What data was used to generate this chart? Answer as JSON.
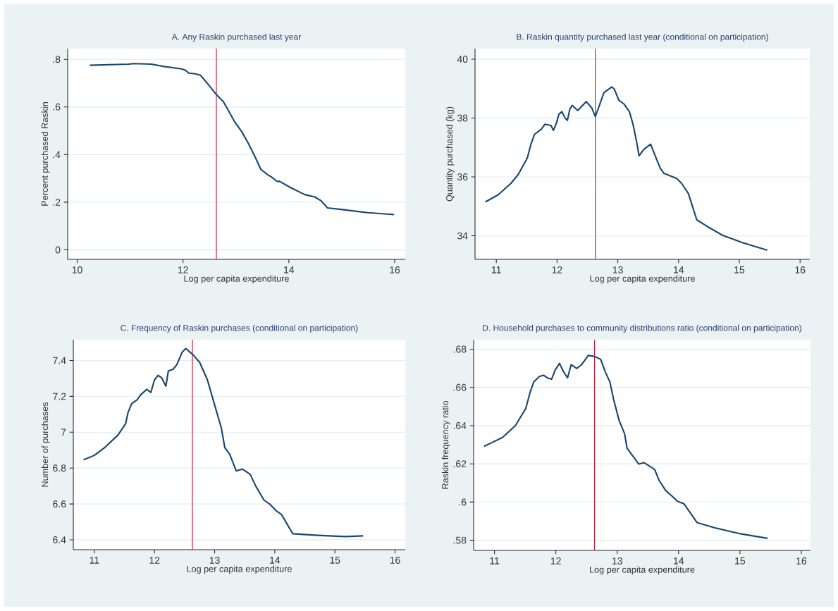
{
  "chart_data": [
    {
      "type": "line",
      "title": "A. Any Raskin purchased last year",
      "xlabel": "Log per capita expenditure",
      "ylabel": "Percent purchased Raskin",
      "color": "#1a476f",
      "grid": "y",
      "xlim": [
        9.82,
        16.2
      ],
      "ylim": [
        -0.04,
        0.845
      ],
      "xticks": [
        10,
        12,
        14,
        16
      ],
      "yticks": [
        {
          "value": 0,
          "label": "0"
        },
        {
          "value": 0.2,
          "label": ".2"
        },
        {
          "value": 0.4,
          "label": ".4"
        },
        {
          "value": 0.6,
          "label": ".6"
        },
        {
          "value": 0.8,
          "label": ".8"
        }
      ],
      "ref_lines": [
        {
          "axis": "x",
          "value": 12.63,
          "color": "#c4213b"
        }
      ],
      "x": [
        10.24,
        10.97,
        11.07,
        11.4,
        11.64,
        11.97,
        12.04,
        12.11,
        12.23,
        12.33,
        12.45,
        12.63,
        12.76,
        12.87,
        12.97,
        13.11,
        13.23,
        13.35,
        13.47,
        13.59,
        13.67,
        13.78,
        13.82,
        14.01,
        14.3,
        14.49,
        14.61,
        14.73,
        15.01,
        15.49,
        15.99
      ],
      "values": [
        0.775,
        0.78,
        0.782,
        0.78,
        0.77,
        0.76,
        0.755,
        0.742,
        0.739,
        0.733,
        0.702,
        0.652,
        0.623,
        0.58,
        0.54,
        0.496,
        0.449,
        0.396,
        0.338,
        0.317,
        0.306,
        0.287,
        0.288,
        0.264,
        0.232,
        0.222,
        0.206,
        0.176,
        0.169,
        0.156,
        0.148
      ]
    },
    {
      "type": "line",
      "title": "B. Raskin quantity purchased last year (conditional on participation)",
      "xlabel": "Log per capita expenditure",
      "ylabel": "Quantity purchased (kg)",
      "color": "#1a476f",
      "grid": "y",
      "xlim": [
        10.65,
        16.16
      ],
      "ylim": [
        33.2,
        40.36
      ],
      "xticks": [
        11,
        12,
        13,
        14,
        15,
        16
      ],
      "yticks": [
        34,
        36,
        38,
        40
      ],
      "ref_lines": [
        {
          "axis": "x",
          "value": 12.63,
          "color": "#c4213b"
        }
      ],
      "x": [
        10.82,
        11.03,
        11.24,
        11.36,
        11.51,
        11.57,
        11.63,
        11.74,
        11.8,
        11.9,
        11.94,
        11.99,
        12.03,
        12.08,
        12.13,
        12.17,
        12.21,
        12.25,
        12.34,
        12.48,
        12.57,
        12.63,
        12.69,
        12.77,
        12.9,
        12.94,
        13.02,
        13.1,
        13.19,
        13.25,
        13.31,
        13.35,
        13.43,
        13.54,
        13.64,
        13.7,
        13.76,
        13.87,
        13.97,
        14.05,
        14.16,
        14.3,
        14.47,
        14.72,
        15.05,
        15.46
      ],
      "values": [
        35.15,
        35.39,
        35.78,
        36.08,
        36.64,
        37.11,
        37.45,
        37.62,
        37.79,
        37.75,
        37.58,
        37.83,
        38.13,
        38.22,
        38.01,
        37.92,
        38.3,
        38.43,
        38.26,
        38.56,
        38.35,
        38.05,
        38.39,
        38.86,
        39.06,
        38.99,
        38.6,
        38.48,
        38.22,
        37.79,
        37.19,
        36.72,
        36.94,
        37.11,
        36.59,
        36.29,
        36.12,
        36.03,
        35.95,
        35.78,
        35.44,
        34.54,
        34.32,
        34.02,
        33.77,
        33.51
      ]
    },
    {
      "type": "line",
      "title": "C. Frequency of Raskin purchases (conditional on participation)",
      "xlabel": "Log per capita expenditure",
      "ylabel": "Number of purchases",
      "color": "#1a476f",
      "grid": "y",
      "xlim": [
        10.65,
        16.17
      ],
      "ylim": [
        6.345,
        7.516
      ],
      "xticks": [
        11,
        12,
        13,
        14,
        15,
        16
      ],
      "yticks": [
        6.4,
        6.6,
        6.8,
        7,
        7.2,
        7.4
      ],
      "ref_lines": [
        {
          "axis": "x",
          "value": 12.63,
          "color": "#c4213b"
        }
      ],
      "x": [
        10.82,
        11.0,
        11.16,
        11.39,
        11.52,
        11.56,
        11.62,
        11.71,
        11.77,
        11.87,
        11.94,
        12.0,
        12.06,
        12.12,
        12.19,
        12.23,
        12.31,
        12.37,
        12.46,
        12.52,
        12.64,
        12.75,
        12.88,
        13.0,
        13.11,
        13.17,
        13.25,
        13.36,
        13.46,
        13.59,
        13.69,
        13.82,
        13.92,
        14.02,
        14.11,
        14.3,
        14.71,
        15.17,
        15.47
      ],
      "values": [
        6.846,
        6.871,
        6.911,
        6.983,
        7.047,
        7.11,
        7.159,
        7.18,
        7.208,
        7.239,
        7.222,
        7.292,
        7.317,
        7.303,
        7.257,
        7.341,
        7.351,
        7.376,
        7.446,
        7.467,
        7.432,
        7.39,
        7.292,
        7.152,
        7.026,
        6.913,
        6.878,
        6.784,
        6.794,
        6.766,
        6.696,
        6.622,
        6.598,
        6.563,
        6.542,
        6.434,
        6.425,
        6.418,
        6.422
      ]
    },
    {
      "type": "line",
      "title": "D. Household purchases to community distributions ratio (conditional on participation)",
      "xlabel": "Log per capita expenditure",
      "ylabel": "Raskin frequency ratio",
      "color": "#1a476f",
      "grid": "y",
      "xlim": [
        10.66,
        16.15
      ],
      "ylim": [
        0.5747,
        0.685
      ],
      "xticks": [
        11,
        12,
        13,
        14,
        15,
        16
      ],
      "yticks": [
        {
          "value": 0.58,
          "label": ".58"
        },
        {
          "value": 0.6,
          "label": ".6"
        },
        {
          "value": 0.62,
          "label": ".62"
        },
        {
          "value": 0.64,
          "label": ".64"
        },
        {
          "value": 0.66,
          "label": ".66"
        },
        {
          "value": 0.68,
          "label": ".68"
        }
      ],
      "ref_lines": [
        {
          "axis": "x",
          "value": 12.63,
          "color": "#c4213b"
        }
      ],
      "x": [
        10.83,
        10.95,
        11.13,
        11.34,
        11.51,
        11.58,
        11.64,
        11.73,
        11.8,
        11.86,
        11.93,
        11.99,
        12.06,
        12.12,
        12.19,
        12.25,
        12.34,
        12.42,
        12.53,
        12.64,
        12.73,
        12.81,
        12.88,
        12.94,
        13.03,
        13.12,
        13.16,
        13.24,
        13.35,
        13.44,
        13.61,
        13.68,
        13.79,
        13.89,
        13.98,
        14.09,
        14.3,
        14.59,
        15.02,
        15.45
      ],
      "values": [
        0.6292,
        0.631,
        0.6338,
        0.64,
        0.649,
        0.6574,
        0.6629,
        0.6657,
        0.6664,
        0.665,
        0.6643,
        0.6692,
        0.6726,
        0.6685,
        0.665,
        0.6719,
        0.6699,
        0.6719,
        0.6768,
        0.6761,
        0.6747,
        0.6678,
        0.6629,
        0.6539,
        0.6428,
        0.6358,
        0.6282,
        0.6247,
        0.6199,
        0.6206,
        0.6171,
        0.6115,
        0.606,
        0.6032,
        0.6004,
        0.599,
        0.5893,
        0.5865,
        0.5833,
        0.581
      ]
    }
  ]
}
